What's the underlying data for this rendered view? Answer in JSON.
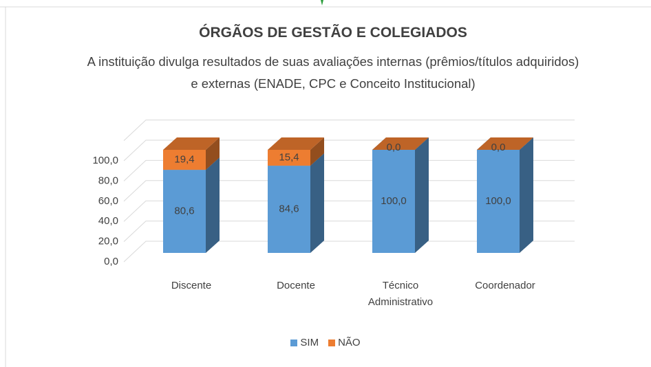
{
  "chart_data": {
    "type": "bar3d_stacked",
    "title": "ÓRGÃOS DE GESTÃO E COLEGIADOS",
    "subtitle": "A instituição divulga resultados de suas avaliações internas (prêmios/títulos adquiridos) e externas (ENADE, CPC e Conceito Institucional)",
    "categories": [
      "Discente",
      "Docente",
      "Técnico Administrativo",
      "Coordenador"
    ],
    "series": [
      {
        "name": "SIM",
        "color": "#5b9bd5",
        "values": [
          80.6,
          84.6,
          100,
          100
        ],
        "value_labels": [
          "80,6",
          "84,6",
          "100,0",
          "100,0"
        ]
      },
      {
        "name": "NÃO",
        "color": "#ed7d31",
        "values": [
          19.4,
          15.4,
          0,
          0
        ],
        "value_labels": [
          "19,4",
          "15,4",
          "0,0",
          "0,0"
        ]
      }
    ],
    "ylim": [
      0,
      120
    ],
    "yticks": [
      {
        "value": 0,
        "label": "0,0"
      },
      {
        "value": 20,
        "label": "20,0"
      },
      {
        "value": 40,
        "label": "40,0"
      },
      {
        "value": 60,
        "label": "60,0"
      },
      {
        "value": 80,
        "label": "80,0"
      },
      {
        "value": 100,
        "label": "100,0"
      }
    ],
    "grid": true,
    "legend": "bottom"
  }
}
